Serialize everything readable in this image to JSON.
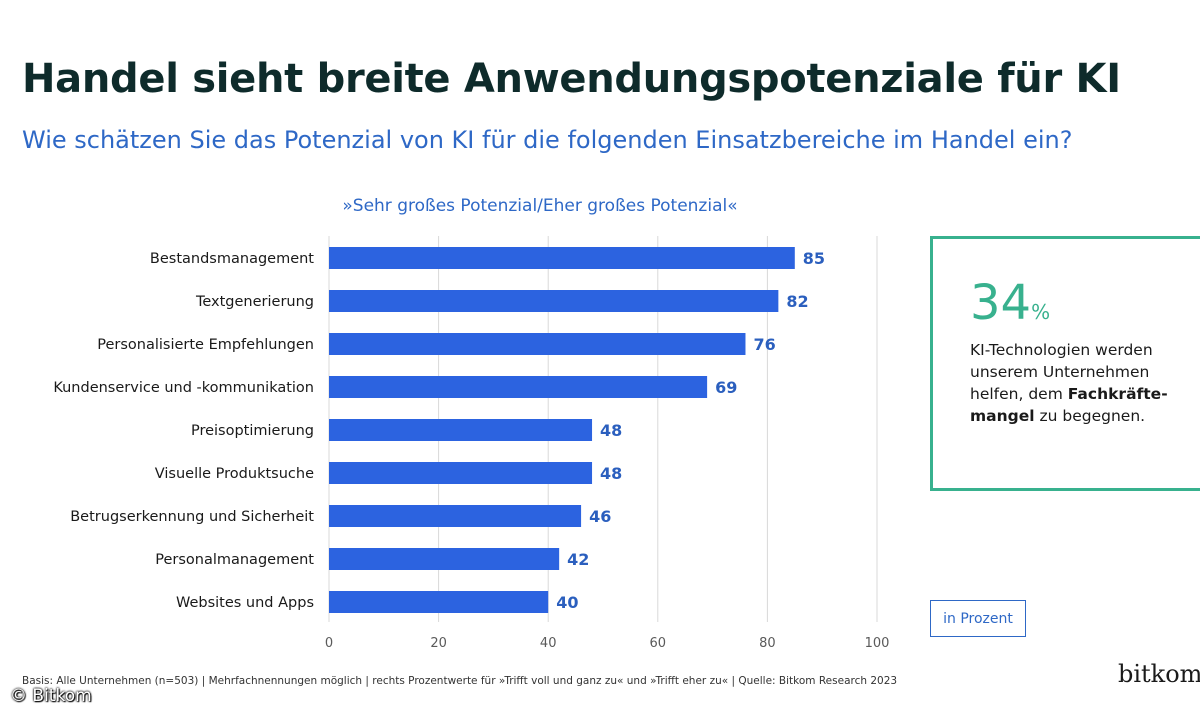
{
  "header": {
    "title": "Handel sieht breite Anwendungspotenziale für KI",
    "subtitle": "Wie schätzen Sie das Potenzial von KI für die folgenden Einsatzbereiche im Handel ein?"
  },
  "chart_data": {
    "type": "bar",
    "orientation": "horizontal",
    "title": "Handel sieht breite Anwendungspotenziale für KI",
    "subtitle": "Wie schätzen Sie das Potenzial von KI für die folgenden Einsatzbereiche im Handel ein?",
    "series_caption": "»Sehr großes Potenzial/Eher großes Potenzial«",
    "categories": [
      "Bestandsmanagement",
      "Textgenerierung",
      "Personalisierte Empfehlungen",
      "Kundenservice und -kommunikation",
      "Preisoptimierung",
      "Visuelle Produktsuche",
      "Betrugserkennung und Sicherheit",
      "Personalmanagement",
      "Websites und Apps"
    ],
    "values": [
      85,
      82,
      76,
      69,
      48,
      48,
      46,
      42,
      40
    ],
    "xlim": [
      0,
      100
    ],
    "xticks": [
      "0",
      "20",
      "40",
      "60",
      "80",
      "100"
    ],
    "xlabel": "",
    "ylabel": "",
    "grid": "vertical",
    "unit_label": "in Prozent",
    "bar_color": "#2c63e0",
    "value_label_color": "#2b5fbe"
  },
  "callout": {
    "value": "34",
    "unit": "%",
    "text_before": "KI-Technologien werden unserem Unternehmen helfen, dem ",
    "text_bold": "Fachkräfte-mangel",
    "text_after": " zu begegnen.",
    "border_color": "#38b18e"
  },
  "footer": {
    "note": "Basis: Alle Unternehmen (n=503) | Mehrfachnennungen möglich | rechts Prozentwerte für »Trifft voll und ganz zu« und »Trifft eher zu« | Quelle: Bitkom Research 2023",
    "brand": "bitkom",
    "copyright": "© Bitkom"
  }
}
